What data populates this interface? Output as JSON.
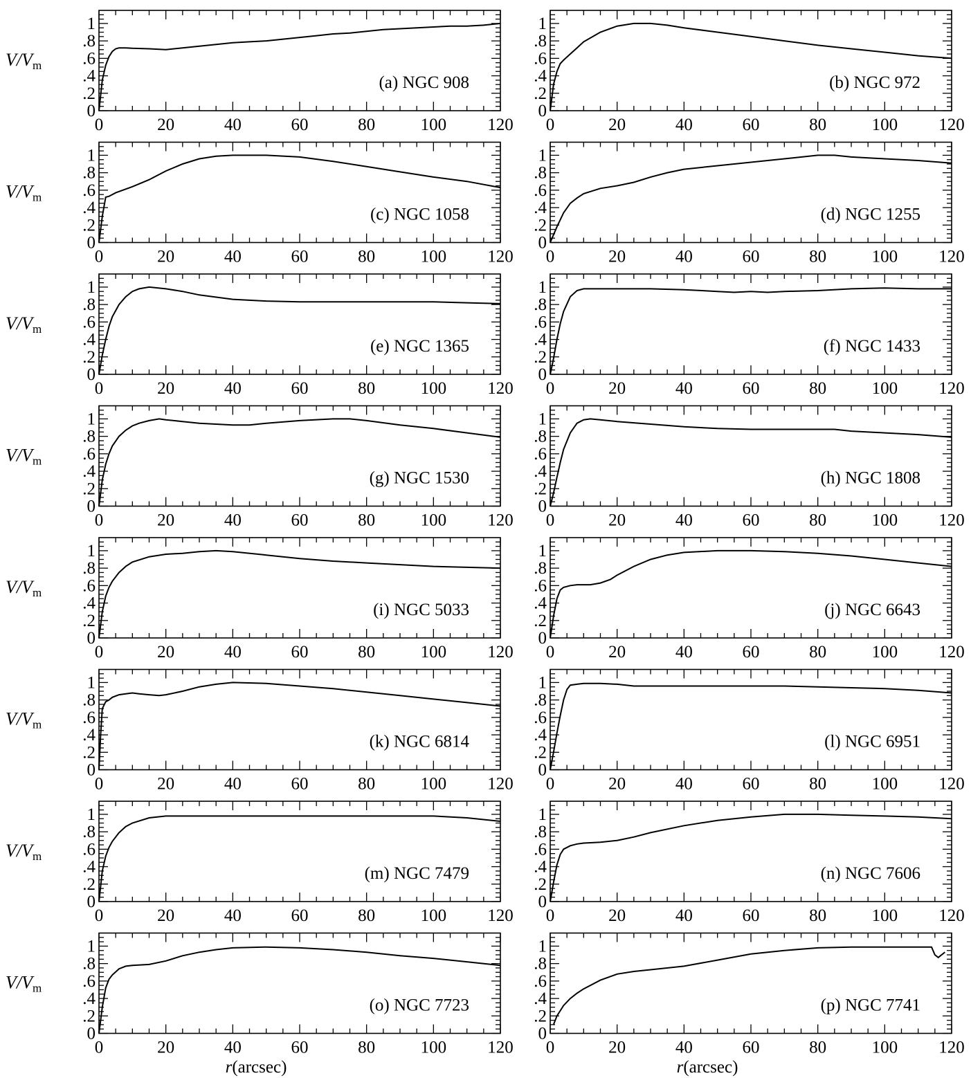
{
  "chart_data": [
    {
      "type": "line",
      "label": "(a) NGC 908",
      "ylabel": {
        "main": "V/V",
        "sub": "m"
      },
      "xlim": [
        0,
        120
      ],
      "ylim": [
        0,
        1.15
      ],
      "x": [
        0,
        1,
        2,
        3,
        4,
        5,
        6,
        8,
        10,
        15,
        20,
        25,
        30,
        35,
        40,
        45,
        50,
        55,
        60,
        65,
        70,
        75,
        80,
        85,
        90,
        95,
        100,
        105,
        110,
        115,
        120
      ],
      "y": [
        0,
        0.35,
        0.52,
        0.62,
        0.68,
        0.71,
        0.72,
        0.72,
        0.715,
        0.71,
        0.7,
        0.72,
        0.74,
        0.76,
        0.78,
        0.79,
        0.8,
        0.82,
        0.84,
        0.86,
        0.88,
        0.89,
        0.91,
        0.93,
        0.94,
        0.95,
        0.96,
        0.97,
        0.97,
        0.98,
        1.0
      ]
    },
    {
      "type": "line",
      "label": "(b) NGC 972",
      "ylabel": {
        "main": "V/V",
        "sub": "m"
      },
      "xlim": [
        0,
        120
      ],
      "ylim": [
        0,
        1.15
      ],
      "x": [
        0,
        1,
        2,
        3,
        4,
        6,
        8,
        10,
        15,
        20,
        25,
        30,
        35,
        40,
        50,
        60,
        70,
        80,
        90,
        100,
        110,
        120
      ],
      "y": [
        0,
        0.3,
        0.45,
        0.54,
        0.58,
        0.65,
        0.72,
        0.79,
        0.9,
        0.97,
        1.0,
        1.0,
        0.98,
        0.95,
        0.9,
        0.85,
        0.8,
        0.75,
        0.71,
        0.67,
        0.63,
        0.6
      ]
    },
    {
      "type": "line",
      "label": "(c) NGC 1058",
      "ylabel": {
        "main": "V/V",
        "sub": "m"
      },
      "xlim": [
        0,
        120
      ],
      "ylim": [
        0,
        1.15
      ],
      "x": [
        0,
        1,
        2,
        3,
        5,
        10,
        15,
        20,
        25,
        30,
        35,
        40,
        50,
        60,
        70,
        80,
        90,
        100,
        110,
        120
      ],
      "y": [
        0,
        0.3,
        0.52,
        0.53,
        0.57,
        0.64,
        0.72,
        0.82,
        0.9,
        0.96,
        0.99,
        1.0,
        1.0,
        0.98,
        0.93,
        0.87,
        0.81,
        0.75,
        0.7,
        0.63
      ]
    },
    {
      "type": "line",
      "label": "(d) NGC 1255",
      "ylabel": {
        "main": "V/V",
        "sub": "m"
      },
      "xlim": [
        0,
        120
      ],
      "ylim": [
        0,
        1.15
      ],
      "x": [
        0,
        2,
        4,
        6,
        8,
        10,
        15,
        20,
        25,
        30,
        35,
        40,
        50,
        60,
        70,
        80,
        85,
        90,
        100,
        110,
        120
      ],
      "y": [
        0,
        0.18,
        0.34,
        0.45,
        0.51,
        0.56,
        0.62,
        0.65,
        0.69,
        0.75,
        0.8,
        0.84,
        0.88,
        0.92,
        0.96,
        1.0,
        1.0,
        0.98,
        0.96,
        0.94,
        0.91
      ]
    },
    {
      "type": "line",
      "label": "(e) NGC 1365",
      "ylabel": {
        "main": "V/V",
        "sub": "m"
      },
      "xlim": [
        0,
        120
      ],
      "ylim": [
        0,
        1.15
      ],
      "x": [
        0,
        1,
        2,
        3,
        4,
        6,
        8,
        10,
        12,
        15,
        20,
        25,
        30,
        40,
        50,
        60,
        70,
        80,
        90,
        100,
        110,
        120
      ],
      "y": [
        0,
        0.22,
        0.4,
        0.55,
        0.66,
        0.8,
        0.89,
        0.95,
        0.98,
        1.0,
        0.98,
        0.95,
        0.91,
        0.86,
        0.84,
        0.83,
        0.83,
        0.83,
        0.83,
        0.83,
        0.82,
        0.81
      ]
    },
    {
      "type": "line",
      "label": "(f) NGC 1433",
      "ylabel": {
        "main": "V/V",
        "sub": "m"
      },
      "xlim": [
        0,
        120
      ],
      "ylim": [
        0,
        1.15
      ],
      "x": [
        0,
        1,
        2,
        3,
        4,
        6,
        8,
        10,
        15,
        20,
        30,
        40,
        50,
        55,
        60,
        65,
        70,
        80,
        90,
        100,
        110,
        120
      ],
      "y": [
        0,
        0.18,
        0.4,
        0.58,
        0.72,
        0.89,
        0.96,
        0.98,
        0.98,
        0.98,
        0.98,
        0.97,
        0.95,
        0.94,
        0.95,
        0.94,
        0.95,
        0.96,
        0.98,
        0.99,
        0.98,
        0.98
      ]
    },
    {
      "type": "line",
      "label": "(g) NGC 1530",
      "ylabel": {
        "main": "V/V",
        "sub": "m"
      },
      "xlim": [
        0,
        120
      ],
      "ylim": [
        0,
        1.15
      ],
      "x": [
        0,
        1,
        2,
        3,
        4,
        6,
        8,
        10,
        12,
        15,
        18,
        20,
        25,
        30,
        40,
        45,
        50,
        60,
        70,
        75,
        80,
        90,
        100,
        110,
        120
      ],
      "y": [
        0,
        0.3,
        0.48,
        0.6,
        0.69,
        0.8,
        0.87,
        0.92,
        0.95,
        0.98,
        1.0,
        0.99,
        0.97,
        0.95,
        0.93,
        0.93,
        0.95,
        0.98,
        1.0,
        1.0,
        0.98,
        0.93,
        0.89,
        0.84,
        0.79
      ]
    },
    {
      "type": "line",
      "label": "(h) NGC 1808",
      "ylabel": {
        "main": "V/V",
        "sub": "m"
      },
      "xlim": [
        0,
        120
      ],
      "ylim": [
        0,
        1.15
      ],
      "x": [
        0,
        1,
        2,
        3,
        4,
        6,
        8,
        10,
        12,
        15,
        20,
        30,
        40,
        50,
        60,
        70,
        80,
        85,
        90,
        100,
        110,
        120
      ],
      "y": [
        0,
        0.15,
        0.33,
        0.5,
        0.65,
        0.84,
        0.95,
        0.99,
        1.0,
        0.99,
        0.97,
        0.94,
        0.91,
        0.89,
        0.88,
        0.88,
        0.88,
        0.88,
        0.86,
        0.84,
        0.82,
        0.79
      ]
    },
    {
      "type": "line",
      "label": "(i) NGC 5033",
      "ylabel": {
        "main": "V/V",
        "sub": "m"
      },
      "xlim": [
        0,
        120
      ],
      "ylim": [
        0,
        1.15
      ],
      "x": [
        0,
        1,
        2,
        3,
        4,
        6,
        8,
        10,
        15,
        20,
        25,
        30,
        35,
        40,
        50,
        60,
        70,
        80,
        90,
        100,
        110,
        120
      ],
      "y": [
        0,
        0.3,
        0.48,
        0.58,
        0.65,
        0.75,
        0.82,
        0.87,
        0.93,
        0.96,
        0.97,
        0.99,
        1.0,
        0.99,
        0.95,
        0.91,
        0.88,
        0.86,
        0.84,
        0.82,
        0.81,
        0.8
      ]
    },
    {
      "type": "line",
      "label": "(j) NGC 6643",
      "ylabel": {
        "main": "V/V",
        "sub": "m"
      },
      "xlim": [
        0,
        120
      ],
      "ylim": [
        0,
        1.15
      ],
      "x": [
        0,
        1,
        2,
        3,
        4,
        6,
        8,
        10,
        12,
        15,
        18,
        20,
        25,
        30,
        35,
        40,
        50,
        60,
        70,
        80,
        90,
        100,
        110,
        120
      ],
      "y": [
        0,
        0.25,
        0.45,
        0.55,
        0.58,
        0.6,
        0.61,
        0.61,
        0.61,
        0.63,
        0.67,
        0.72,
        0.82,
        0.9,
        0.95,
        0.98,
        1.0,
        1.0,
        0.99,
        0.97,
        0.94,
        0.9,
        0.86,
        0.82
      ]
    },
    {
      "type": "line",
      "label": "(k) NGC 6814",
      "ylabel": {
        "main": "V/V",
        "sub": "m"
      },
      "xlim": [
        0,
        120
      ],
      "ylim": [
        0,
        1.15
      ],
      "x": [
        0,
        0.5,
        1,
        2,
        3,
        4,
        6,
        8,
        10,
        12,
        15,
        18,
        20,
        25,
        30,
        35,
        40,
        50,
        60,
        70,
        80,
        90,
        100,
        110,
        120
      ],
      "y": [
        0,
        0.4,
        0.7,
        0.78,
        0.8,
        0.83,
        0.86,
        0.87,
        0.88,
        0.87,
        0.86,
        0.85,
        0.86,
        0.9,
        0.95,
        0.98,
        1.0,
        0.99,
        0.96,
        0.93,
        0.89,
        0.85,
        0.81,
        0.77,
        0.73
      ]
    },
    {
      "type": "line",
      "label": "(l) NGC 6951",
      "ylabel": {
        "main": "V/V",
        "sub": "m"
      },
      "xlim": [
        0,
        120
      ],
      "ylim": [
        0,
        1.15
      ],
      "x": [
        0,
        1,
        2,
        3,
        4,
        5,
        6,
        8,
        10,
        15,
        20,
        25,
        30,
        40,
        50,
        60,
        70,
        80,
        90,
        100,
        110,
        120
      ],
      "y": [
        0,
        0.2,
        0.42,
        0.62,
        0.8,
        0.92,
        0.97,
        0.98,
        0.99,
        0.99,
        0.98,
        0.96,
        0.96,
        0.96,
        0.96,
        0.96,
        0.96,
        0.95,
        0.94,
        0.93,
        0.91,
        0.88
      ]
    },
    {
      "type": "line",
      "label": "(m) NGC 7479",
      "ylabel": {
        "main": "V/V",
        "sub": "m"
      },
      "xlim": [
        0,
        120
      ],
      "ylim": [
        0,
        1.15
      ],
      "x": [
        0,
        1,
        2,
        3,
        4,
        6,
        8,
        10,
        15,
        20,
        30,
        40,
        50,
        60,
        70,
        80,
        90,
        100,
        110,
        120
      ],
      "y": [
        0,
        0.35,
        0.52,
        0.62,
        0.69,
        0.79,
        0.86,
        0.9,
        0.96,
        0.98,
        0.98,
        0.98,
        0.98,
        0.98,
        0.98,
        0.98,
        0.98,
        0.98,
        0.96,
        0.92
      ]
    },
    {
      "type": "line",
      "label": "(n) NGC 7606",
      "ylabel": {
        "main": "V/V",
        "sub": "m"
      },
      "xlim": [
        0,
        120
      ],
      "ylim": [
        0,
        1.15
      ],
      "x": [
        0,
        1,
        2,
        3,
        4,
        6,
        8,
        10,
        15,
        20,
        25,
        30,
        40,
        50,
        60,
        70,
        75,
        80,
        90,
        100,
        110,
        120
      ],
      "y": [
        0,
        0.22,
        0.42,
        0.54,
        0.6,
        0.64,
        0.66,
        0.67,
        0.68,
        0.7,
        0.74,
        0.79,
        0.87,
        0.93,
        0.97,
        1.0,
        1.0,
        1.0,
        0.99,
        0.98,
        0.97,
        0.95
      ]
    },
    {
      "type": "line",
      "label": "(o) NGC 7723",
      "ylabel": {
        "main": "V/V",
        "sub": "m"
      },
      "xlim": [
        0,
        120
      ],
      "ylim": [
        0,
        1.15
      ],
      "x": [
        0,
        1,
        2,
        3,
        4,
        6,
        8,
        10,
        15,
        20,
        25,
        30,
        35,
        40,
        50,
        60,
        70,
        80,
        90,
        100,
        110,
        120
      ],
      "y": [
        0,
        0.3,
        0.52,
        0.62,
        0.67,
        0.74,
        0.77,
        0.78,
        0.79,
        0.83,
        0.89,
        0.93,
        0.96,
        0.98,
        0.99,
        0.98,
        0.96,
        0.93,
        0.89,
        0.86,
        0.82,
        0.78
      ]
    },
    {
      "type": "line",
      "label": "(p) NGC 7741",
      "ylabel": {
        "main": "V/V",
        "sub": "m"
      },
      "xlim": [
        0,
        120
      ],
      "ylim": [
        0,
        1.15
      ],
      "x": [
        1,
        2,
        4,
        6,
        8,
        10,
        15,
        20,
        25,
        30,
        40,
        50,
        60,
        70,
        80,
        90,
        100,
        110,
        114,
        115,
        116,
        117,
        118
      ],
      "y": [
        0.1,
        0.2,
        0.32,
        0.4,
        0.46,
        0.51,
        0.61,
        0.68,
        0.71,
        0.73,
        0.77,
        0.84,
        0.91,
        0.95,
        0.98,
        0.99,
        0.99,
        0.99,
        0.99,
        0.9,
        0.87,
        0.9,
        0.93
      ]
    }
  ],
  "x_ticks": [
    "0",
    "20",
    "40",
    "60",
    "80",
    "100",
    "120"
  ],
  "y_ticks": [
    "0",
    ".2",
    ".4",
    ".6",
    ".8",
    "1"
  ],
  "xlabel": {
    "var": "r",
    "unit": "(arcsec)"
  }
}
